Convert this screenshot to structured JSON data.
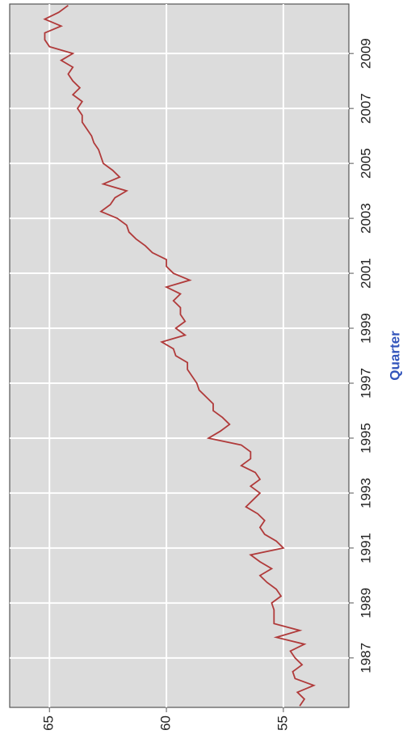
{
  "chart_data": {
    "type": "line",
    "xlabel": "Quarter",
    "color": "#b03a3a",
    "grid": true,
    "x": [
      1985.25,
      1985.5,
      1985.75,
      1986.0,
      1986.25,
      1986.5,
      1986.75,
      1987.0,
      1987.25,
      1987.5,
      1987.75,
      1988.0,
      1988.25,
      1988.5,
      1988.75,
      1989.0,
      1989.25,
      1989.5,
      1989.75,
      1990.0,
      1990.25,
      1990.5,
      1990.75,
      1991.0,
      1991.25,
      1991.5,
      1991.75,
      1992.0,
      1992.25,
      1992.5,
      1992.75,
      1993.0,
      1993.25,
      1993.5,
      1993.75,
      1994.0,
      1994.25,
      1994.5,
      1994.75,
      1995.0,
      1995.25,
      1995.5,
      1995.75,
      1996.0,
      1996.25,
      1996.5,
      1996.75,
      1997.0,
      1997.25,
      1997.5,
      1997.75,
      1998.0,
      1998.25,
      1998.5,
      1998.75,
      1999.0,
      1999.25,
      1999.5,
      1999.75,
      2000.0,
      2000.25,
      2000.5,
      2000.75,
      2001.0,
      2001.25,
      2001.5,
      2001.75,
      2002.0,
      2002.25,
      2002.5,
      2002.75,
      2003.0,
      2003.25,
      2003.5,
      2003.75,
      2004.0,
      2004.25,
      2004.5,
      2004.75,
      2005.0,
      2005.25,
      2005.5,
      2005.75,
      2006.0,
      2006.25,
      2006.5,
      2006.75,
      2007.0,
      2007.25,
      2007.5,
      2007.75,
      2008.0,
      2008.25,
      2008.5,
      2008.75,
      2009.0,
      2009.25,
      2009.5,
      2009.75,
      2010.0,
      2010.25,
      2010.5,
      2010.75
    ],
    "values": [
      54.3,
      54.1,
      54.4,
      53.7,
      54.5,
      54.6,
      54.2,
      54.5,
      54.7,
      54.1,
      55.3,
      54.3,
      55.4,
      55.4,
      55.4,
      55.5,
      55.1,
      55.3,
      55.7,
      56.0,
      55.5,
      56.0,
      56.4,
      55.0,
      55.3,
      55.8,
      56.0,
      55.8,
      56.1,
      56.6,
      56.3,
      56.0,
      56.4,
      56.0,
      56.2,
      56.8,
      56.4,
      56.4,
      56.8,
      58.2,
      57.7,
      57.3,
      57.6,
      58.0,
      58.0,
      58.3,
      58.6,
      58.7,
      58.9,
      59.1,
      59.1,
      59.6,
      59.7,
      60.2,
      59.2,
      59.6,
      59.2,
      59.4,
      59.4,
      59.7,
      59.4,
      60.0,
      59.0,
      59.7,
      60.0,
      60.0,
      60.6,
      60.9,
      61.3,
      61.6,
      61.7,
      62.1,
      62.8,
      62.4,
      62.2,
      61.7,
      62.7,
      62.0,
      62.3,
      62.7,
      62.8,
      62.9,
      63.1,
      63.2,
      63.4,
      63.6,
      63.6,
      63.8,
      63.6,
      64.0,
      63.7,
      64.0,
      64.2,
      64.0,
      64.5,
      64.0,
      65.0,
      65.2,
      65.2,
      64.5,
      65.2,
      64.6,
      64.2
    ],
    "xlim": [
      1985.2,
      2010.8
    ],
    "xticks": [
      1987,
      1989,
      1991,
      1993,
      1995,
      1997,
      1999,
      2001,
      2003,
      2005,
      2007,
      2009
    ],
    "ylim": [
      52.2,
      66.7
    ],
    "yticks": [
      55,
      60,
      65
    ]
  }
}
